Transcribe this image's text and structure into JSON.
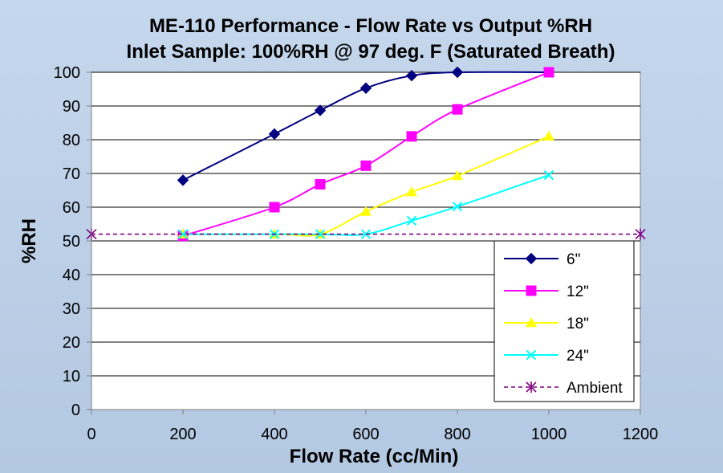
{
  "chart_data": {
    "type": "line",
    "title": "ME-110 Performance - Flow Rate vs Output %RH",
    "subtitle": "Inlet Sample: 100%RH @ 97 deg. F (Saturated Breath)",
    "xlabel": "Flow Rate (cc/Min)",
    "ylabel": "%RH",
    "xlim": [
      0,
      1200
    ],
    "ylim": [
      0,
      100
    ],
    "xticks": [
      "0",
      "200",
      "400",
      "600",
      "800",
      "1000",
      "1200"
    ],
    "yticks": [
      "0",
      "10",
      "20",
      "30",
      "40",
      "50",
      "60",
      "70",
      "80",
      "90",
      "100"
    ],
    "grid": "horizontal",
    "legend_position": "right",
    "series": [
      {
        "name": "6\"",
        "color": "#000080",
        "marker": "diamond",
        "dashed": false,
        "points": [
          [
            200,
            68
          ],
          [
            400,
            81.7
          ],
          [
            500,
            88.7
          ],
          [
            600,
            95.3
          ],
          [
            700,
            99
          ],
          [
            800,
            100
          ],
          [
            1000,
            100
          ]
        ],
        "marked": [
          true,
          true,
          true,
          true,
          true,
          true,
          false
        ]
      },
      {
        "name": "12\"",
        "color": "#ff00ff",
        "marker": "square",
        "dashed": false,
        "points": [
          [
            200,
            51.5
          ],
          [
            400,
            60
          ],
          [
            500,
            66.8
          ],
          [
            600,
            72.3
          ],
          [
            700,
            81
          ],
          [
            800,
            89
          ],
          [
            1000,
            100
          ]
        ],
        "marked": [
          true,
          true,
          true,
          true,
          true,
          true,
          true
        ]
      },
      {
        "name": "18\"",
        "color": "#ffff00",
        "marker": "triangle",
        "dashed": false,
        "points": [
          [
            200,
            52
          ],
          [
            400,
            52
          ],
          [
            500,
            52
          ],
          [
            600,
            58.7
          ],
          [
            700,
            64.5
          ],
          [
            800,
            69.3
          ],
          [
            1000,
            81
          ]
        ],
        "marked": [
          true,
          true,
          true,
          true,
          true,
          true,
          true
        ]
      },
      {
        "name": "24\"",
        "color": "#00ffff",
        "marker": "x",
        "dashed": false,
        "points": [
          [
            200,
            52
          ],
          [
            400,
            52
          ],
          [
            500,
            52
          ],
          [
            600,
            52
          ],
          [
            700,
            56
          ],
          [
            800,
            60.2
          ],
          [
            1000,
            69.5
          ]
        ],
        "marked": [
          true,
          true,
          true,
          true,
          true,
          true,
          true
        ]
      },
      {
        "name": "Ambient",
        "color": "#800080",
        "marker": "star",
        "dashed": true,
        "points": [
          [
            0,
            52
          ],
          [
            1200,
            52
          ]
        ],
        "marked": [
          true,
          true
        ]
      }
    ]
  }
}
